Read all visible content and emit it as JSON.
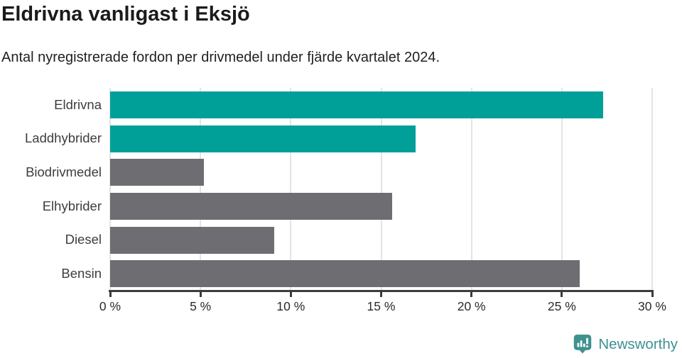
{
  "chart_data": {
    "type": "bar",
    "orientation": "horizontal",
    "title": "Eldrivna vanligast i Eksjö",
    "subtitle": "Antal nyregistrerade fordon per drivmedel under fjärde kvartalet 2024.",
    "categories": [
      "Eldrivna",
      "Laddhybrider",
      "Biodrivmedel",
      "Elhybrider",
      "Diesel",
      "Bensin"
    ],
    "values": [
      27.3,
      16.9,
      5.2,
      15.6,
      9.1,
      26.0
    ],
    "unit": "%",
    "xlim": [
      0,
      30
    ],
    "xticks": [
      0,
      5,
      10,
      15,
      20,
      25,
      30
    ],
    "xtick_labels": [
      "0 %",
      "5 %",
      "10 %",
      "15 %",
      "20 %",
      "25 %",
      "30 %"
    ],
    "bar_colors": [
      "#00a099",
      "#00a099",
      "#6d6d72",
      "#6d6d72",
      "#6d6d72",
      "#6d6d72"
    ],
    "grid": true,
    "legend": "none"
  },
  "colors": {
    "accent_teal": "#00a099",
    "neutral_gray": "#6d6d72",
    "gridline": "#e4e4e4",
    "axis": "#3c3c3c",
    "title_text": "#1b1b1b",
    "label_text": "#3d3d3d"
  },
  "logo": {
    "label": "Newsworthy",
    "icon": "newsworthy-speech-bubble-barchart-icon",
    "text_color": "#3e918f",
    "icon_color": "#3e9290"
  }
}
